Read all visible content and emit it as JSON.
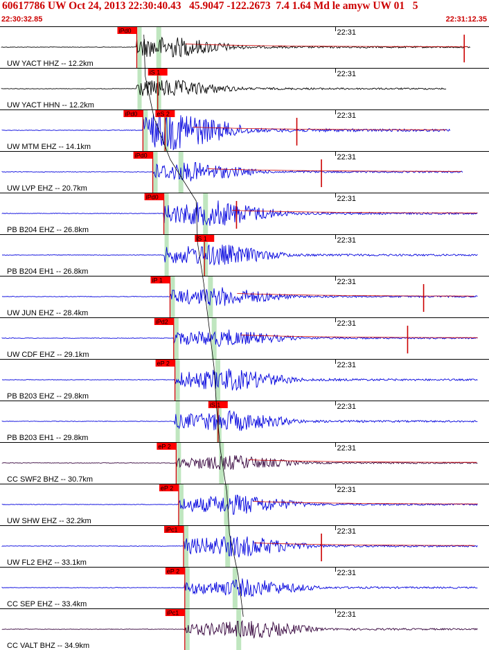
{
  "header": {
    "title": "60617786 UW Oct 24, 2013 22:30:40.43   45.9047 -122.2673  7.4 1.64 Md le amyw UW 01   5",
    "start_time": "22:30:32.85",
    "end_time": "22:31:12.35"
  },
  "colors": {
    "header_text": "#cc0000",
    "pick_box": "#ff0000",
    "pick_line": "#cc0000",
    "gate_band": "#bfe6bf",
    "travel_curve": "#000000",
    "coda_curve": "#cc0000"
  },
  "chart_data": {
    "type": "seismogram",
    "time_axis": {
      "start": "22:30:32.85",
      "end": "22:31:12.35",
      "minute_marker": "22:31"
    },
    "grid": false,
    "traces": [
      {
        "label": "UW YACT HHZ -- 12.2km",
        "color": "#000000",
        "picks": [
          "iPd0"
        ],
        "p_time": 11.0,
        "s_time": 12.7,
        "amp": 0.55,
        "has_spike": true,
        "spike_time": 37.6
      },
      {
        "label": "UW YACT HHN -- 12.2km",
        "color": "#000000",
        "picks": [
          "iS 1"
        ],
        "p_time": 11.0,
        "s_time": 12.7,
        "amp": 0.45,
        "has_spike": false
      },
      {
        "label": "UW MTM EHZ -- 14.1km",
        "color": "#0000dd",
        "picks": [
          "iPd0",
          "eS 2"
        ],
        "p_time": 11.5,
        "s_time": 13.3,
        "amp": 1.0,
        "has_spike": true,
        "spike_time": 24.0
      },
      {
        "label": "UW LVP EHZ -- 20.7km",
        "color": "#0000dd",
        "picks": [
          "iPd0"
        ],
        "p_time": 12.3,
        "s_time": 14.5,
        "amp": 0.5,
        "has_spike": true,
        "spike_time": 26.0
      },
      {
        "label": "PB B204 EHZ -- 26.8km",
        "color": "#0000dd",
        "picks": [
          "iPd0"
        ],
        "p_time": 13.2,
        "s_time": 16.5,
        "amp": 0.7,
        "has_spike": true,
        "spike_time": 19.1
      },
      {
        "label": "PB B204 EH1 -- 26.8km",
        "color": "#0000dd",
        "picks": [
          "iS 1"
        ],
        "p_time": 13.2,
        "s_time": 16.5,
        "amp": 0.6,
        "has_spike": false
      },
      {
        "label": "UW JUN EHZ -- 28.4km",
        "color": "#0000dd",
        "picks": [
          "iP 1"
        ],
        "p_time": 13.7,
        "s_time": 16.9,
        "amp": 0.5,
        "has_spike": true,
        "spike_time": 34.3
      },
      {
        "label": "UW CDF EHZ -- 29.1km",
        "color": "#0000dd",
        "picks": [
          "iPd2"
        ],
        "p_time": 14.0,
        "s_time": 17.2,
        "amp": 0.45,
        "has_spike": true,
        "spike_time": 33.0
      },
      {
        "label": "PB B203 EHZ -- 29.8km",
        "color": "#0000dd",
        "picks": [
          "eP 2"
        ],
        "p_time": 14.1,
        "s_time": 17.5,
        "amp": 0.6,
        "has_spike": false
      },
      {
        "label": "PB B203 EH1 -- 29.8km",
        "color": "#0000dd",
        "picks": [
          "iS 1"
        ],
        "p_time": 14.1,
        "s_time": 17.6,
        "amp": 0.55,
        "has_spike": false
      },
      {
        "label": "CC SWF2 BHZ -- 30.7km",
        "color": "#33003a",
        "picks": [
          "eP 2"
        ],
        "p_time": 14.2,
        "s_time": 17.8,
        "amp": 0.4,
        "has_spike": false
      },
      {
        "label": "UW SHW EHZ -- 32.2km",
        "color": "#0000dd",
        "picks": [
          "eP 2"
        ],
        "p_time": 14.4,
        "s_time": 18.2,
        "amp": 0.55,
        "has_spike": false
      },
      {
        "label": "UW FL2 EHZ -- 33.1km",
        "color": "#0000dd",
        "picks": [
          "iPc1"
        ],
        "p_time": 14.8,
        "s_time": 18.3,
        "amp": 0.6,
        "has_spike": true,
        "spike_time": 26.0
      },
      {
        "label": "CC SEP EHZ -- 33.4km",
        "color": "#0000dd",
        "picks": [
          "eP 2"
        ],
        "p_time": 14.9,
        "s_time": 18.9,
        "amp": 0.5,
        "has_spike": false
      },
      {
        "label": "CC VALT BHZ -- 34.9km",
        "color": "#33003a",
        "picks": [
          "iPc1"
        ],
        "p_time": 14.9,
        "s_time": 19.2,
        "amp": 0.5,
        "has_spike": false
      }
    ]
  }
}
